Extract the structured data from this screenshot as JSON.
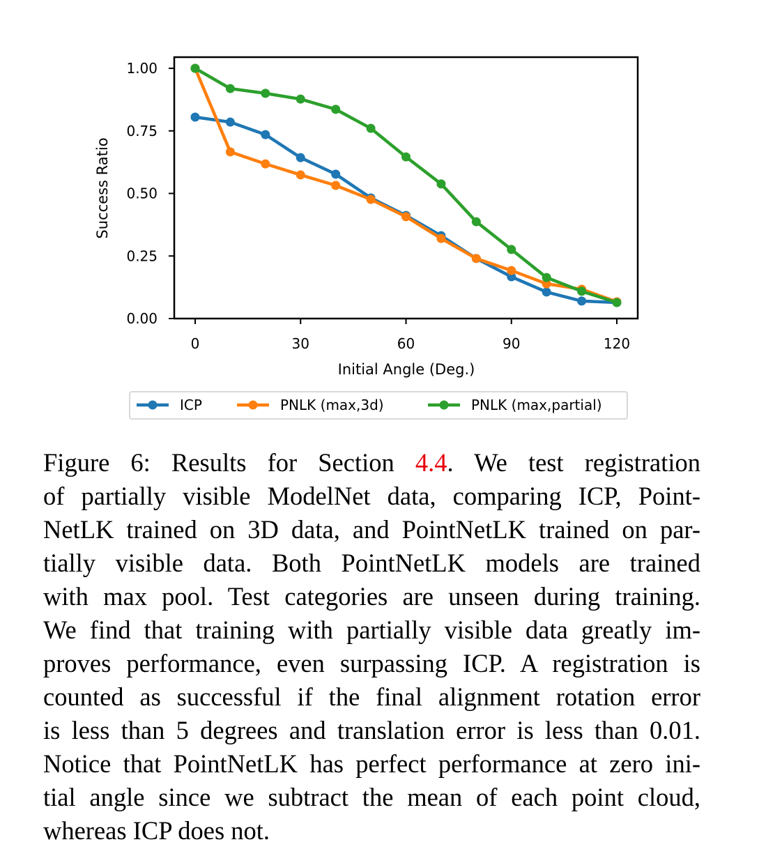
{
  "chart_data": {
    "type": "line",
    "xlabel": "Initial Angle (Deg.)",
    "ylabel": "Success Ratio",
    "xlim": [
      -6,
      126
    ],
    "ylim": [
      0,
      1.05
    ],
    "xticks": [
      0,
      30,
      60,
      90,
      120
    ],
    "yticks": [
      0.0,
      0.25,
      0.5,
      0.75,
      1.0
    ],
    "ytick_labels": [
      "0.00",
      "0.25",
      "0.50",
      "0.75",
      "1.00"
    ],
    "xtick_labels": [
      "0",
      "30",
      "60",
      "90",
      "120"
    ],
    "grid": false,
    "legend": "bottom-center, outside",
    "x": [
      0,
      10,
      20,
      30,
      40,
      50,
      60,
      70,
      80,
      90,
      100,
      110,
      120
    ],
    "series": [
      {
        "name": "ICP",
        "color": "#1f77b4",
        "values": [
          0.805,
          0.785,
          0.735,
          0.643,
          0.577,
          0.482,
          0.412,
          0.331,
          0.24,
          0.167,
          0.106,
          0.07,
          0.064
        ]
      },
      {
        "name": "PNLK (max,3d)",
        "color": "#ff7f0e",
        "values": [
          1.0,
          0.666,
          0.618,
          0.574,
          0.532,
          0.476,
          0.407,
          0.32,
          0.24,
          0.192,
          0.139,
          0.117,
          0.067
        ]
      },
      {
        "name": "PNLK (max,partial)",
        "color": "#2ca02c",
        "values": [
          1.0,
          0.919,
          0.9,
          0.877,
          0.836,
          0.76,
          0.646,
          0.538,
          0.387,
          0.276,
          0.164,
          0.109,
          0.064
        ]
      }
    ]
  },
  "caption": {
    "first": {
      "pre": "Figure 6:  Results for Section ",
      "ref": "4.4",
      "post": ".  We test registration"
    },
    "lines": [
      "of partially visible ModelNet data, comparing ICP, Point-",
      "NetLK trained on 3D data, and PointNetLK trained on par-",
      "tially visible data.  Both PointNetLK models are trained",
      "with max pool. Test categories are unseen during training.",
      "We find that training with partially visible data greatly im-",
      "proves performance, even surpassing ICP. A registration is",
      "counted as successful if the final alignment rotation error",
      "is less than 5 degrees and translation error is less than 0.01.",
      "Notice that PointNetLK has perfect performance at zero ini-",
      "tial angle since we subtract the mean of each point cloud,",
      "whereas ICP does not."
    ]
  }
}
